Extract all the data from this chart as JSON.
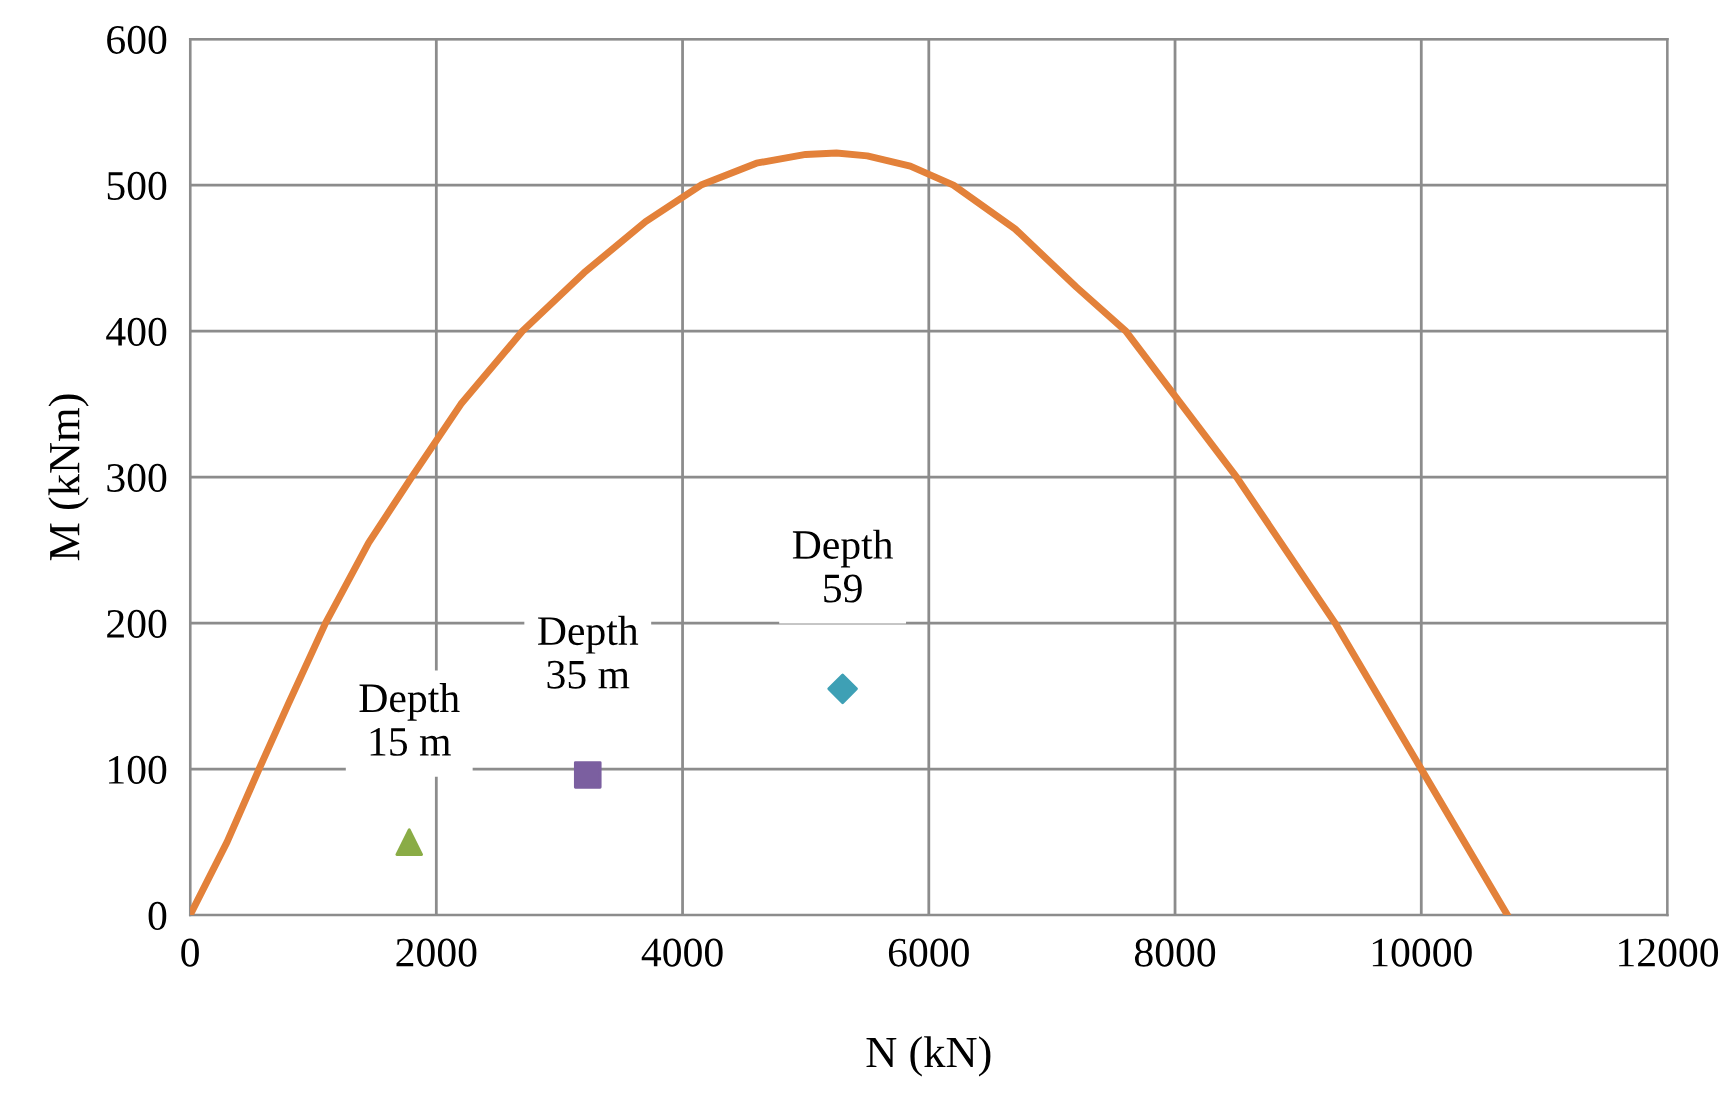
{
  "chart_data": {
    "type": "line",
    "xlabel": "N (kN)",
    "ylabel": "M (kNm)",
    "xlim": [
      0,
      12000
    ],
    "xticks": [
      0,
      2000,
      4000,
      6000,
      8000,
      10000,
      12000
    ],
    "ylim": [
      0,
      600
    ],
    "yticks": [
      0,
      100,
      200,
      300,
      400,
      500,
      600
    ],
    "grid": true,
    "legend": false,
    "series": [
      {
        "color": "#e3813a",
        "marker": "none",
        "x": [
          0,
          300,
          560,
          800,
          1100,
          1450,
          1800,
          2200,
          2700,
          3200,
          3700,
          4150,
          4600,
          5000,
          5250,
          5500,
          5850,
          6200,
          6700,
          7200,
          7600,
          8050,
          8500,
          8900,
          9300,
          9650,
          10000,
          10350,
          10700
        ],
        "values": [
          0,
          50,
          100,
          145,
          200,
          255,
          300,
          350,
          400,
          440,
          475,
          500,
          515,
          521,
          522,
          520,
          513,
          500,
          470,
          430,
          400,
          350,
          300,
          250,
          200,
          150,
          100,
          50,
          0
        ]
      },
      {
        "type": "scatter",
        "color": "#8aac46",
        "marker": "triangle",
        "x": [
          1780
        ],
        "values": [
          50
        ]
      },
      {
        "type": "scatter",
        "color": "#7b5fa0",
        "marker": "square",
        "x": [
          3230
        ],
        "values": [
          96
        ]
      },
      {
        "type": "scatter",
        "color": "#3ea0b5",
        "marker": "diamond",
        "x": [
          5300
        ],
        "values": [
          155
        ]
      }
    ],
    "annotations": [
      {
        "text": "Depth\n15 m",
        "x": 1780,
        "y": 50
      },
      {
        "text": "Depth\n35 m",
        "x": 3230,
        "y": 96
      },
      {
        "text": "Depth\n59",
        "x": 5300,
        "y": 155
      }
    ]
  }
}
